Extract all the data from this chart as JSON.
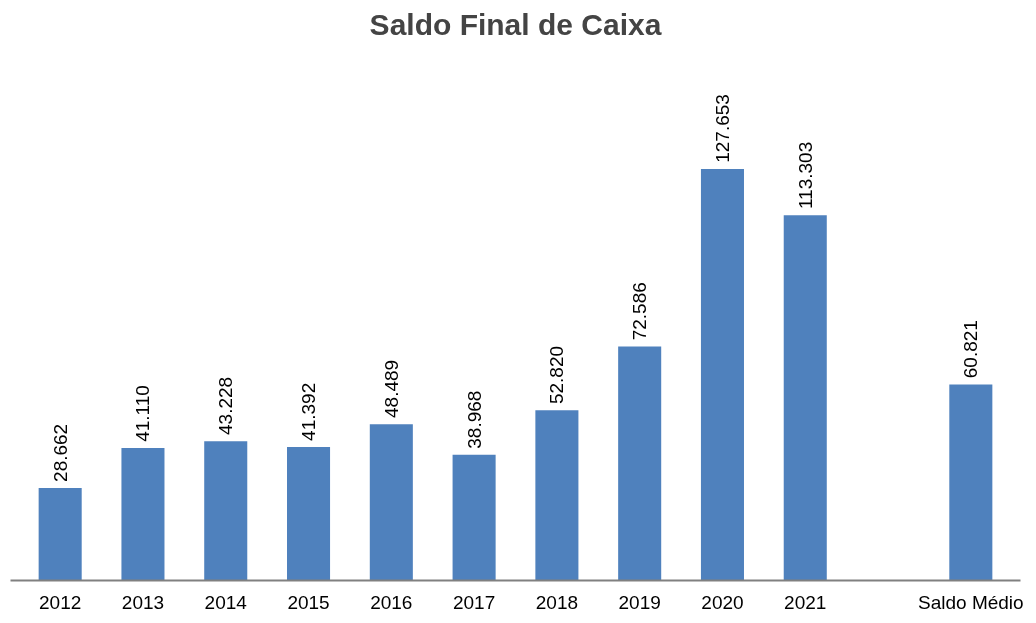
{
  "chart_data": {
    "type": "bar",
    "title": "Saldo Final de Caixa",
    "categories": [
      "2012",
      "2013",
      "2014",
      "2015",
      "2016",
      "2017",
      "2018",
      "2019",
      "2020",
      "2021",
      null,
      "Saldo Médio"
    ],
    "values": [
      28662,
      41110,
      43228,
      41392,
      48489,
      38968,
      52820,
      72586,
      127653,
      113303,
      null,
      60821
    ],
    "value_labels": [
      "28.662",
      "41.110",
      "43.228",
      "41.392",
      "48.489",
      "38.968",
      "52.820",
      "72.586",
      "127.653",
      "113.303",
      null,
      "60.821"
    ],
    "color": "#4f81bd",
    "grid": false
  }
}
